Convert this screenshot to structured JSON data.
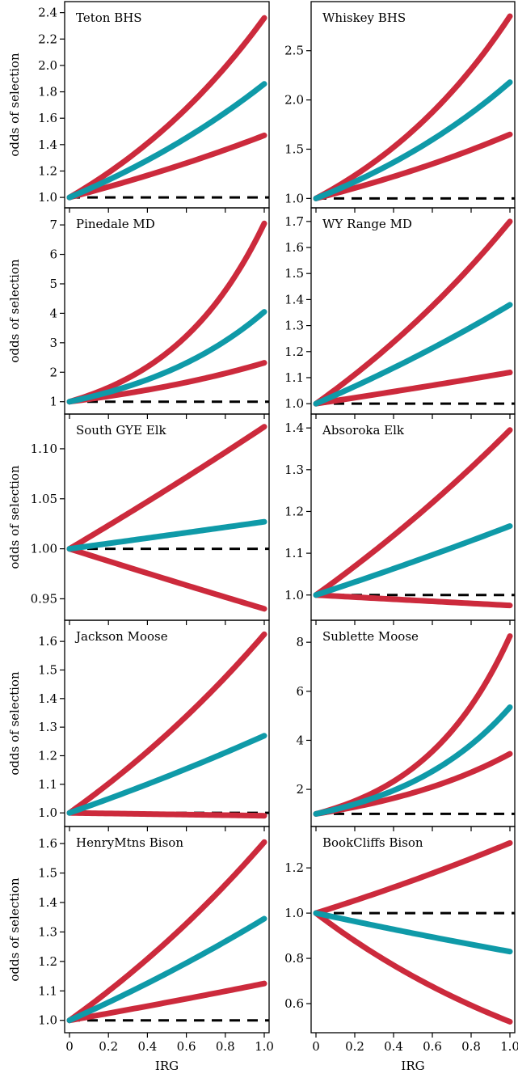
{
  "colors": {
    "bounds": "#cc2a3c",
    "mean": "#0f9aa8",
    "reference": "#000000"
  },
  "xlabel": "IRG",
  "ylabel": "odds of selection",
  "chart_data": [
    {
      "type": "line",
      "title": "Teton BHS",
      "xlim": [
        0,
        1
      ],
      "ylim": [
        0.97,
        2.41
      ],
      "yticks": [
        1.0,
        1.2,
        1.4,
        1.6,
        1.8,
        2.0,
        2.2,
        2.4
      ],
      "ytick_labels": [
        "1.0",
        "1.2",
        "1.4",
        "1.6",
        "1.8",
        "2.0",
        "2.2",
        "2.4"
      ],
      "xticks": [
        0,
        0.2,
        0.4,
        0.6,
        0.8,
        1.0
      ],
      "xtick_labels": [
        "0",
        "0.2",
        "0.4",
        "0.6",
        "0.8",
        "1.0"
      ],
      "reference": 1.0,
      "mean_end": 1.86,
      "lower_end": 1.47,
      "upper_end": 2.36
    },
    {
      "type": "line",
      "title": "Whiskey BHS",
      "xlim": [
        0,
        1
      ],
      "ylim": [
        0.97,
        2.9
      ],
      "yticks": [
        1.0,
        1.5,
        2.0,
        2.5
      ],
      "ytick_labels": [
        "1.0",
        "1.5",
        "2.0",
        "2.5"
      ],
      "xticks": [
        0,
        0.2,
        0.4,
        0.6,
        0.8,
        1.0
      ],
      "xtick_labels": [
        "0",
        "0.2",
        "0.4",
        "0.6",
        "0.8",
        "1.0"
      ],
      "reference": 1.0,
      "mean_end": 2.18,
      "lower_end": 1.65,
      "upper_end": 2.85
    },
    {
      "type": "line",
      "title": "Pinedale MD",
      "xlim": [
        0,
        1
      ],
      "ylim": [
        0.8,
        7.25
      ],
      "yticks": [
        1,
        2,
        3,
        4,
        5,
        6,
        7
      ],
      "ytick_labels": [
        "1",
        "2",
        "3",
        "4",
        "5",
        "6",
        "7"
      ],
      "xticks": [
        0,
        0.2,
        0.4,
        0.6,
        0.8,
        1.0
      ],
      "xtick_labels": [
        "0",
        "0.2",
        "0.4",
        "0.6",
        "0.8",
        "1.0"
      ],
      "reference": 1.0,
      "mean_end": 4.05,
      "lower_end": 2.32,
      "upper_end": 7.05
    },
    {
      "type": "line",
      "title": "WY Range MD",
      "xlim": [
        0,
        1
      ],
      "ylim": [
        0.985,
        1.715
      ],
      "yticks": [
        1.0,
        1.1,
        1.2,
        1.3,
        1.4,
        1.5,
        1.6,
        1.7
      ],
      "ytick_labels": [
        "1.0",
        "1.1",
        "1.2",
        "1.3",
        "1.4",
        "1.5",
        "1.6",
        "1.7"
      ],
      "xticks": [
        0,
        0.2,
        0.4,
        0.6,
        0.8,
        1.0
      ],
      "xtick_labels": [
        "0",
        "0.2",
        "0.4",
        "0.6",
        "0.8",
        "1.0"
      ],
      "reference": 1.0,
      "mean_end": 1.38,
      "lower_end": 1.12,
      "upper_end": 1.7
    },
    {
      "type": "line",
      "title": "South GYE Elk",
      "xlim": [
        0,
        1
      ],
      "ylim": [
        0.935,
        1.125
      ],
      "yticks": [
        0.95,
        1.0,
        1.05,
        1.1
      ],
      "ytick_labels": [
        "0.95",
        "1.00",
        "1.05",
        "1.10"
      ],
      "xticks": [
        0,
        0.2,
        0.4,
        0.6,
        0.8,
        1.0
      ],
      "xtick_labels": [
        "0",
        "0.2",
        "0.4",
        "0.6",
        "0.8",
        "1.0"
      ],
      "reference": 1.0,
      "mean_end": 1.027,
      "lower_end": 0.94,
      "upper_end": 1.122
    },
    {
      "type": "line",
      "title": "Absoroka Elk",
      "xlim": [
        0,
        1
      ],
      "ylim": [
        0.955,
        1.41
      ],
      "yticks": [
        1.0,
        1.1,
        1.2,
        1.3,
        1.4
      ],
      "ytick_labels": [
        "1.0",
        "1.1",
        "1.2",
        "1.3",
        "1.4"
      ],
      "xticks": [
        0,
        0.2,
        0.4,
        0.6,
        0.8,
        1.0
      ],
      "xtick_labels": [
        "0",
        "0.2",
        "0.4",
        "0.6",
        "0.8",
        "1.0"
      ],
      "reference": 1.0,
      "mean_end": 1.165,
      "lower_end": 0.975,
      "upper_end": 1.395
    },
    {
      "type": "line",
      "title": "Jackson Moose",
      "xlim": [
        0,
        1
      ],
      "ylim": [
        0.975,
        1.64
      ],
      "yticks": [
        1.0,
        1.1,
        1.2,
        1.3,
        1.4,
        1.5,
        1.6
      ],
      "ytick_labels": [
        "1.0",
        "1.1",
        "1.2",
        "1.3",
        "1.4",
        "1.5",
        "1.6"
      ],
      "xticks": [
        0,
        0.2,
        0.4,
        0.6,
        0.8,
        1.0
      ],
      "xtick_labels": [
        "0",
        "0.2",
        "0.4",
        "0.6",
        "0.8",
        "1.0"
      ],
      "reference": 1.0,
      "mean_end": 1.27,
      "lower_end": 0.99,
      "upper_end": 1.625
    },
    {
      "type": "line",
      "title": "Sublette Moose",
      "xlim": [
        0,
        1
      ],
      "ylim": [
        0.75,
        8.5
      ],
      "yticks": [
        2,
        4,
        6,
        8
      ],
      "ytick_labels": [
        "2",
        "4",
        "6",
        "8"
      ],
      "xticks": [
        0,
        0.2,
        0.4,
        0.6,
        0.8,
        1.0
      ],
      "xtick_labels": [
        "0",
        "0.2",
        "0.4",
        "0.6",
        "0.8",
        "1.0"
      ],
      "reference": 1.0,
      "mean_end": 5.35,
      "lower_end": 3.45,
      "upper_end": 8.25
    },
    {
      "type": "line",
      "title": "HenryMtns Bison",
      "xlim": [
        0,
        1
      ],
      "ylim": [
        0.98,
        1.625
      ],
      "yticks": [
        1.0,
        1.1,
        1.2,
        1.3,
        1.4,
        1.5,
        1.6
      ],
      "ytick_labels": [
        "1.0",
        "1.1",
        "1.2",
        "1.3",
        "1.4",
        "1.5",
        "1.6"
      ],
      "xticks": [
        0,
        0.2,
        0.4,
        0.6,
        0.8,
        1.0
      ],
      "xtick_labels": [
        "0",
        "0.2",
        "0.4",
        "0.6",
        "0.8",
        "1.0"
      ],
      "reference": 1.0,
      "mean_end": 1.345,
      "lower_end": 1.125,
      "upper_end": 1.605
    },
    {
      "type": "line",
      "title": "BookCliffs Bison",
      "xlim": [
        0,
        1
      ],
      "ylim": [
        0.5,
        1.34
      ],
      "yticks": [
        0.6,
        0.8,
        1.0,
        1.2
      ],
      "ytick_labels": [
        "0.6",
        "0.8",
        "1.0",
        "1.2"
      ],
      "xticks": [
        0,
        0.2,
        0.4,
        0.6,
        0.8,
        1.0
      ],
      "xtick_labels": [
        "0",
        "0.2",
        "0.4",
        "0.6",
        "0.8",
        "1.0"
      ],
      "reference": 1.0,
      "mean_end": 0.83,
      "lower_end": 0.52,
      "upper_end": 1.31
    }
  ]
}
